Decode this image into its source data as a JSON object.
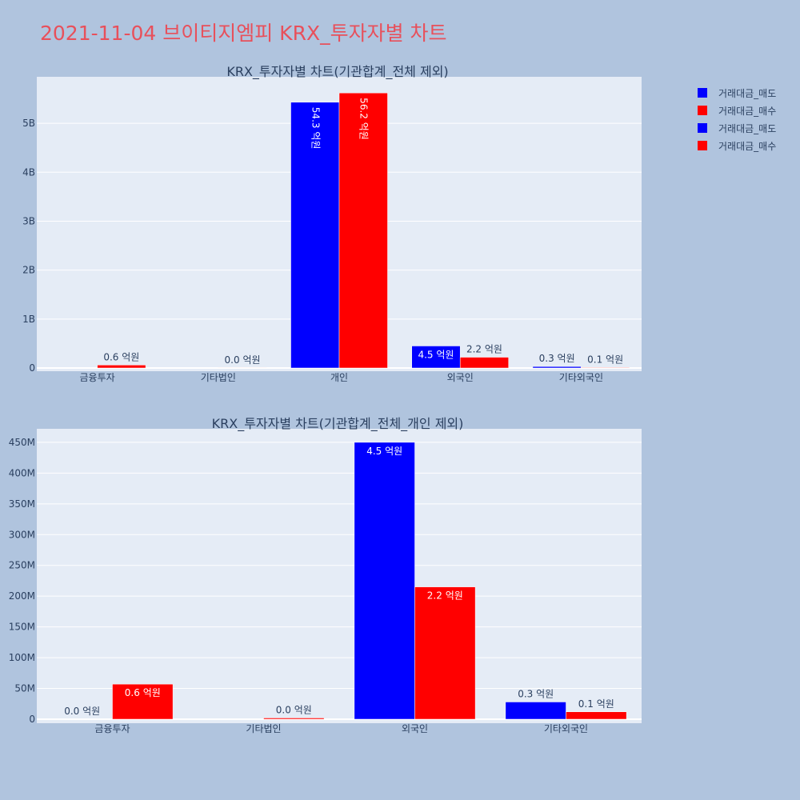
{
  "page_title": "2021-11-04 브이티지엠피 KRX_투자자별 차트",
  "legend": [
    {
      "label": "거래대금_매도",
      "color": "#0000ff"
    },
    {
      "label": "거래대금_매수",
      "color": "#ff0000"
    },
    {
      "label": "거래대금_매도",
      "color": "#0000ff"
    },
    {
      "label": "거래대금_매수",
      "color": "#ff0000"
    }
  ],
  "chart_data": [
    {
      "type": "bar",
      "title": "KRX_투자자별 차트(기관합계_전체 제외)",
      "categories": [
        "금융투자",
        "기타법인",
        "개인",
        "외국인",
        "기타외국인"
      ],
      "series": [
        {
          "name": "거래대금_매도",
          "color": "#0000ff",
          "values": [
            0,
            0,
            5430000000,
            450000000,
            30000000
          ],
          "labels": [
            "",
            "",
            "54.3 억원",
            "4.5 억원",
            "0.3 억원"
          ]
        },
        {
          "name": "거래대금_매수",
          "color": "#ff0000",
          "values": [
            60000000,
            3000000,
            5620000000,
            220000000,
            10000000
          ],
          "labels": [
            "0.6 억원",
            "0.0 억원",
            "56.2 억원",
            "2.2 억원",
            "0.1 억원"
          ]
        }
      ],
      "ylim": [
        0,
        5950000000
      ],
      "yticks": [
        0,
        1000000000,
        2000000000,
        3000000000,
        4000000000,
        5000000000
      ],
      "ytick_labels": [
        "0",
        "1B",
        "2B",
        "3B",
        "4B",
        "5B"
      ]
    },
    {
      "type": "bar",
      "title": "KRX_투자자별 차트(기관합계_전체_개인 제외)",
      "categories": [
        "금융투자",
        "기타법인",
        "외국인",
        "기타외국인"
      ],
      "series": [
        {
          "name": "거래대금_매도",
          "color": "#0000ff",
          "values": [
            0,
            0,
            450000000,
            28000000
          ],
          "labels": [
            "0.0 억원",
            "",
            "4.5 억원",
            "0.3 억원"
          ]
        },
        {
          "name": "거래대금_매수",
          "color": "#ff0000",
          "values": [
            57000000,
            2000000,
            215000000,
            12000000
          ],
          "labels": [
            "0.6 억원",
            "0.0 억원",
            "2.2 억원",
            "0.1 억원"
          ]
        }
      ],
      "ylim": [
        0,
        472000000
      ],
      "yticks": [
        0,
        50000000,
        100000000,
        150000000,
        200000000,
        250000000,
        300000000,
        350000000,
        400000000,
        450000000
      ],
      "ytick_labels": [
        "0",
        "50M",
        "100M",
        "150M",
        "200M",
        "250M",
        "300M",
        "350M",
        "400M",
        "450M"
      ]
    }
  ]
}
